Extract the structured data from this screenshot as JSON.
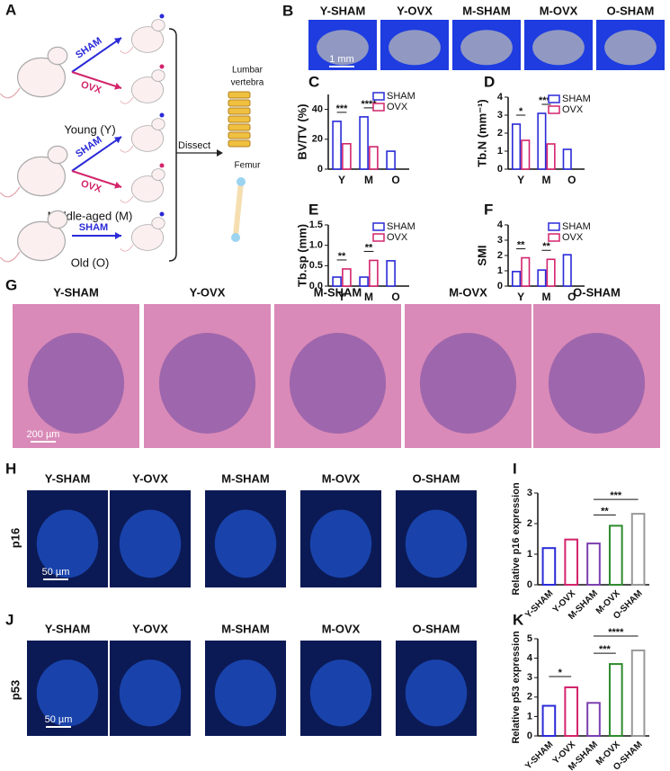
{
  "schematic": {
    "letter": "A",
    "groups": [
      {
        "arms": [
          "SHAM",
          "OVX"
        ],
        "label": "Young (Y)"
      },
      {
        "arms": [
          "SHAM",
          "OVX"
        ],
        "label": "Middle-aged (M)"
      },
      {
        "arms": [
          "SHAM"
        ],
        "label": "Old (O)"
      }
    ],
    "action": "Dissect",
    "organs": [
      [
        "Lumbar",
        "vertebra"
      ],
      [
        "Femur"
      ]
    ]
  },
  "image_rows": [
    {
      "letter": "B",
      "labels": [
        "Y-SHAM",
        "Y-OVX",
        "M-SHAM",
        "M-OVX",
        "O-SHAM"
      ],
      "scale": "1 mm"
    },
    {
      "letter": "G",
      "labels": [
        "Y-SHAM",
        "Y-OVX",
        "M-SHAM",
        "M-OVX",
        "O-SHAM"
      ],
      "scale": "200 µm"
    },
    {
      "letter": "H",
      "row_label": "p16",
      "labels": [
        "Y-SHAM",
        "Y-OVX",
        "M-SHAM",
        "M-OVX",
        "O-SHAM"
      ],
      "scale": "50 µm"
    },
    {
      "letter": "J",
      "row_label": "p53",
      "labels": [
        "Y-SHAM",
        "Y-OVX",
        "M-SHAM",
        "M-OVX",
        "O-SHAM"
      ],
      "scale": "50 µm"
    }
  ],
  "chart_data": [
    {
      "type": "bar",
      "panel": "C",
      "ylabel": "BV/TV (%)",
      "categories": [
        "Y",
        "M",
        "O"
      ],
      "series": [
        {
          "name": "SHAM",
          "color": "#2a2ad8",
          "values": [
            32,
            35,
            12
          ]
        },
        {
          "name": "OVX",
          "color": "#d3246c",
          "values": [
            17,
            15,
            null
          ]
        }
      ],
      "ylim": [
        0,
        50
      ],
      "yticks": [
        0,
        20,
        40
      ],
      "annotations": [
        "***",
        "****"
      ]
    },
    {
      "type": "bar",
      "panel": "D",
      "ylabel": "Tb.N (mm⁻¹)",
      "categories": [
        "Y",
        "M",
        "O"
      ],
      "series": [
        {
          "name": "SHAM",
          "color": "#2a2ad8",
          "values": [
            2.5,
            3.1,
            1.1
          ]
        },
        {
          "name": "OVX",
          "color": "#d3246c",
          "values": [
            1.6,
            1.4,
            null
          ]
        }
      ],
      "ylim": [
        0,
        4
      ],
      "yticks": [
        0,
        1,
        2,
        3,
        4
      ],
      "annotations": [
        "*",
        "****"
      ]
    },
    {
      "type": "bar",
      "panel": "E",
      "ylabel": "Tb.sp (mm)",
      "categories": [
        "Y",
        "M",
        "O"
      ],
      "series": [
        {
          "name": "SHAM",
          "color": "#2a2ad8",
          "values": [
            0.22,
            0.22,
            0.62
          ]
        },
        {
          "name": "OVX",
          "color": "#d3246c",
          "values": [
            0.42,
            0.63,
            null
          ]
        }
      ],
      "ylim": [
        0,
        1.5
      ],
      "yticks": [
        {
          "value": 0,
          "label": "0.0"
        },
        {
          "value": 0.5,
          "label": "0.5"
        },
        {
          "value": 1,
          "label": "1.0"
        },
        {
          "value": 1.5,
          "label": "1.5"
        }
      ],
      "annotations": [
        "**",
        "**"
      ]
    },
    {
      "type": "bar",
      "panel": "F",
      "ylabel": "SMI",
      "categories": [
        "Y",
        "M",
        "O"
      ],
      "series": [
        {
          "name": "SHAM",
          "color": "#2a2ad8",
          "values": [
            0.95,
            1.05,
            2.05
          ]
        },
        {
          "name": "OVX",
          "color": "#d3246c",
          "values": [
            1.85,
            1.75,
            null
          ]
        }
      ],
      "ylim": [
        0,
        4
      ],
      "yticks": [
        0,
        1,
        2,
        3,
        4
      ],
      "annotations": [
        "**",
        "**"
      ]
    },
    {
      "type": "bar",
      "panel": "I",
      "ylabel": "Relative p16 expression",
      "categories": [
        "Y-SHAM",
        "Y-OVX",
        "M-SHAM",
        "M-OVX",
        "O-SHAM"
      ],
      "values": [
        1.2,
        1.48,
        1.35,
        1.93,
        2.32
      ],
      "colors": [
        "#2a2ad8",
        "#d3246c",
        "#7b3fb0",
        "#2e8b2e",
        "#999999"
      ],
      "ylim": [
        0,
        3
      ],
      "yticks": [
        0,
        1,
        2,
        3
      ],
      "annotations": [
        "***",
        "**"
      ]
    },
    {
      "type": "bar",
      "panel": "K",
      "ylabel": "Relative p53 expression",
      "categories": [
        "Y-SHAM",
        "Y-OVX",
        "M-SHAM",
        "M-OVX",
        "O-SHAM"
      ],
      "values": [
        1.55,
        2.5,
        1.7,
        3.7,
        4.4
      ],
      "colors": [
        "#2a2ad8",
        "#d3246c",
        "#7b3fb0",
        "#2e8b2e",
        "#999999"
      ],
      "ylim": [
        0,
        5
      ],
      "yticks": [
        0,
        1,
        2,
        3,
        4,
        5
      ],
      "annotations": [
        "*",
        "***",
        "****"
      ]
    }
  ]
}
